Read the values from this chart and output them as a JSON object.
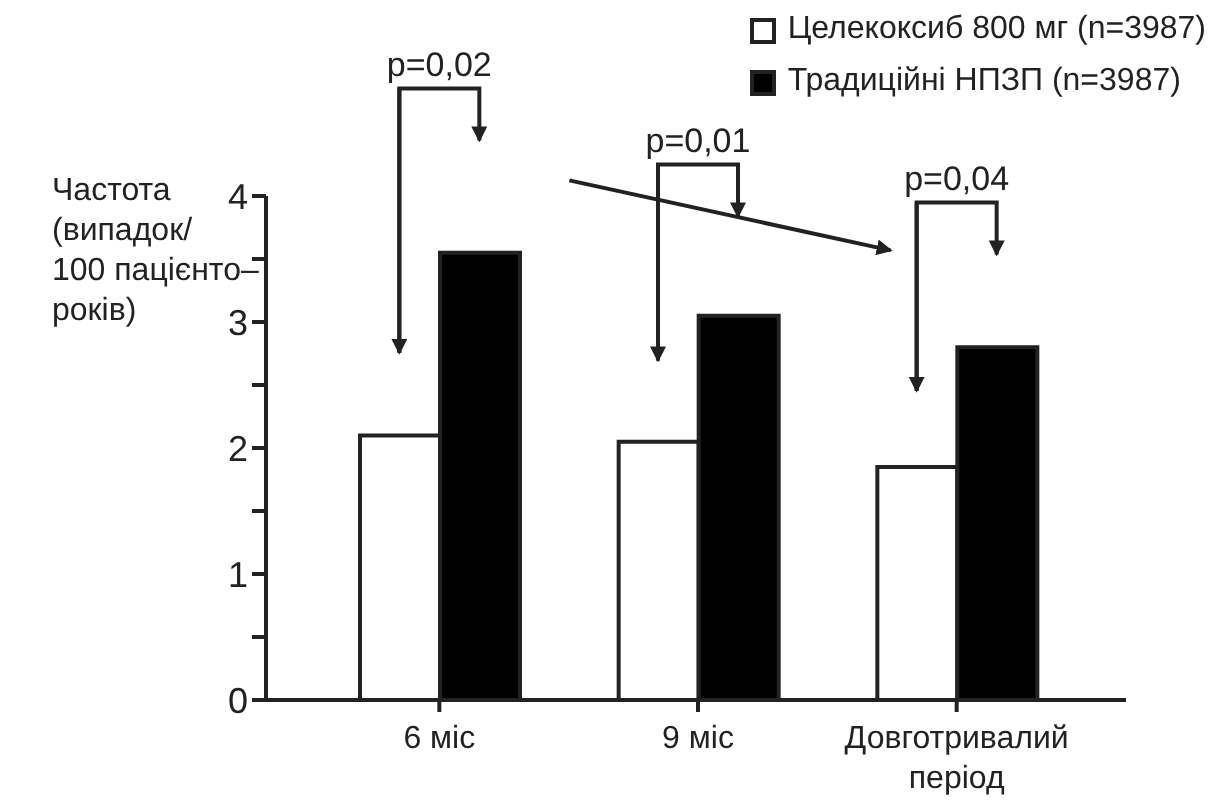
{
  "chart_data": {
    "type": "bar",
    "ylabel": "Частота (випадок/100 пацієнто–років)",
    "categories": [
      "6 міс",
      "9 міс",
      "Довготривалий період"
    ],
    "series": [
      {
        "name": "Целекоксиб 800 мг (n=3987)",
        "color": "#ffffff",
        "values": [
          2.1,
          2.05,
          1.85
        ]
      },
      {
        "name": "Традиційні НПЗП (n=3987)",
        "color": "#000000",
        "values": [
          3.55,
          3.05,
          2.8
        ]
      }
    ],
    "ylim": [
      0,
      4
    ],
    "yticks": [
      0,
      {
        "value": 0.5,
        "label": null
      },
      1,
      {
        "value": 1.5,
        "label": null
      },
      2,
      {
        "value": 2.5,
        "label": null
      },
      3,
      {
        "value": 3.5,
        "label": null
      },
      4
    ],
    "annotations": [
      "p=0,02",
      "p=0,01",
      "p=0,04"
    ],
    "grid": false,
    "legend": "top right"
  }
}
